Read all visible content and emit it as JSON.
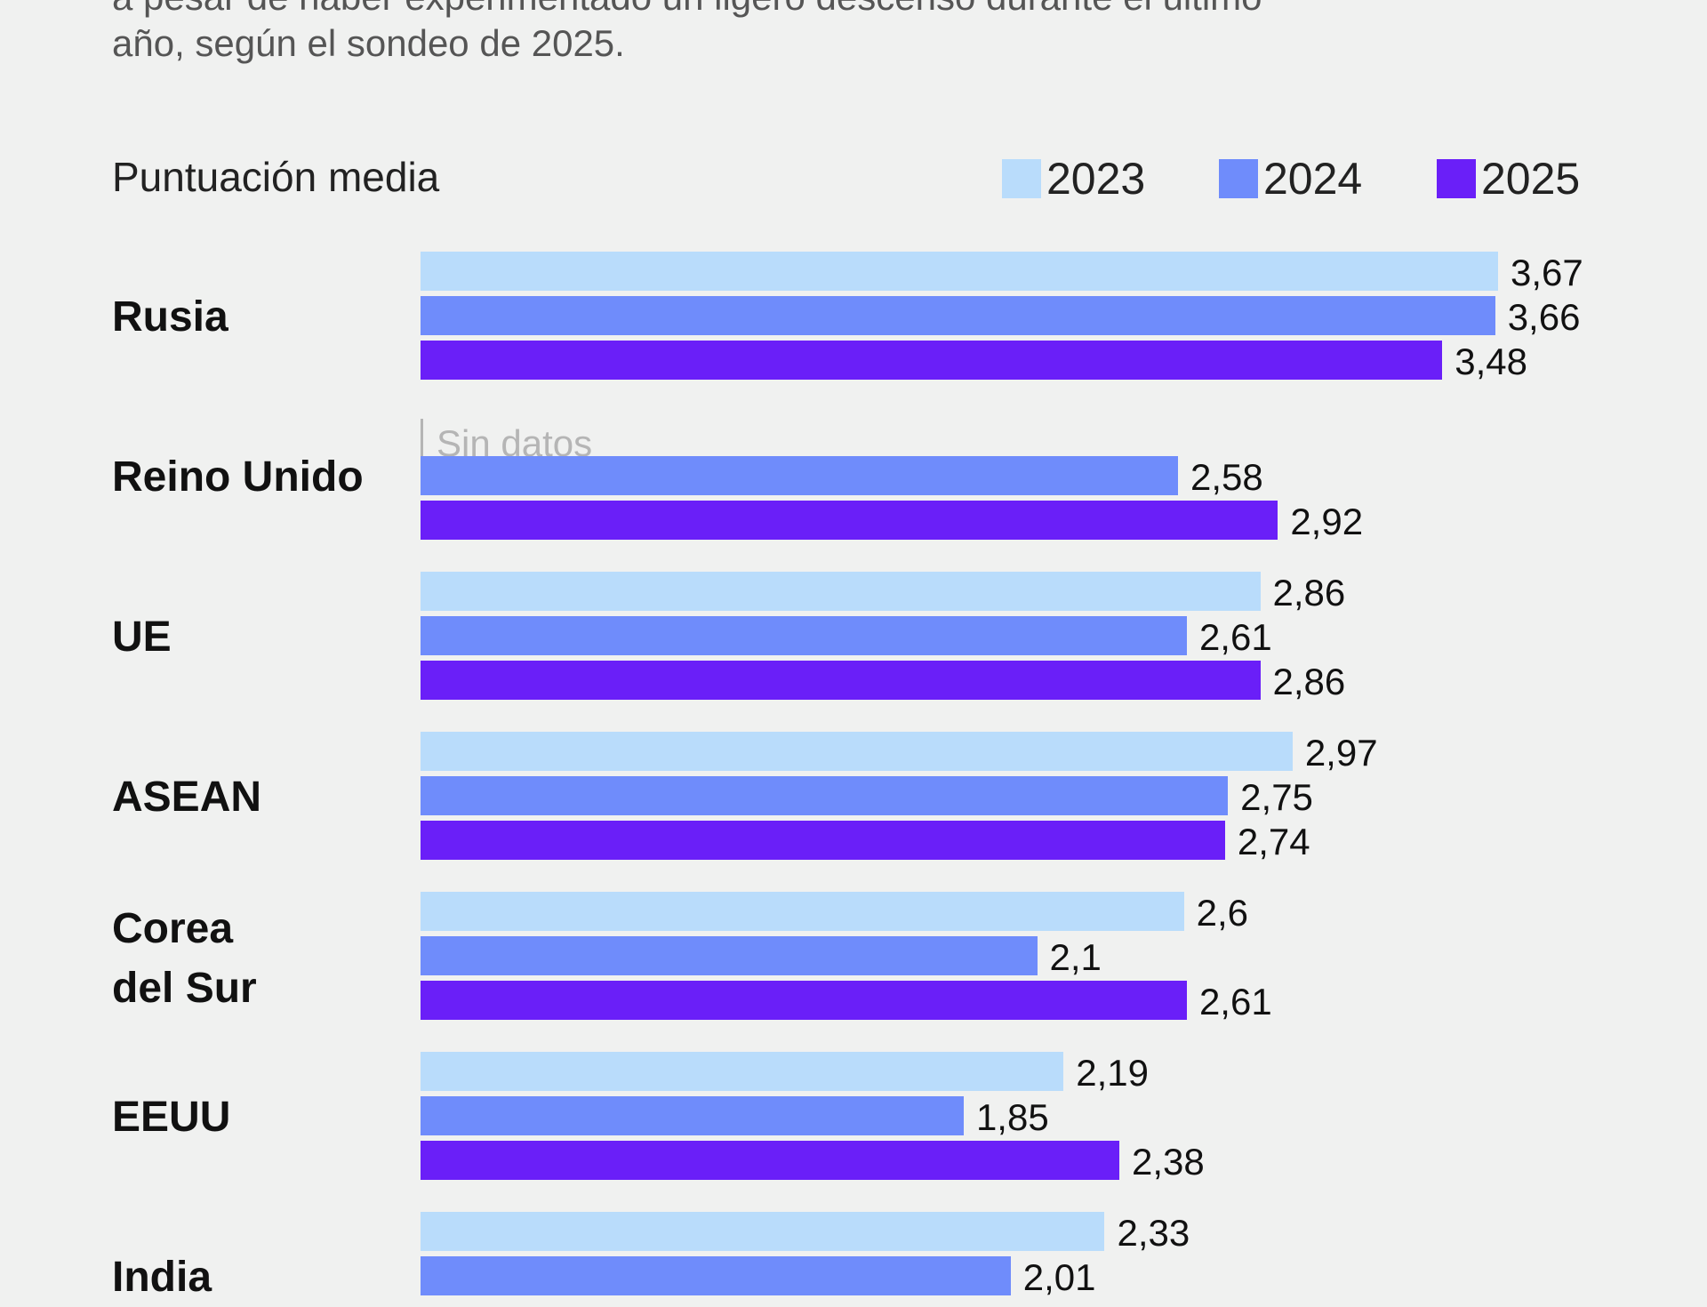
{
  "subtitle_lines": [
    "a pesar de haber experimentado un ligero descenso durante el último",
    "año, según el sondeo de 2025."
  ],
  "chart_data": {
    "type": "bar",
    "orientation": "horizontal",
    "ylabel": "Puntuación media",
    "legend_placement": "top-right",
    "no_data_label": "Sin datos",
    "categories": [
      "Rusia",
      "Reino Unido",
      "UE",
      "ASEAN",
      "Corea del Sur",
      "EEUU",
      "India"
    ],
    "series": [
      {
        "name": "2023",
        "color": "#b9dcfb",
        "values": [
          3.67,
          null,
          2.86,
          2.97,
          2.6,
          2.19,
          2.33
        ],
        "labels": [
          "3,67",
          null,
          "2,86",
          "2,97",
          "2,6",
          "2,19",
          "2,33"
        ]
      },
      {
        "name": "2024",
        "color": "#6f8cfb",
        "values": [
          3.66,
          2.58,
          2.61,
          2.75,
          2.1,
          1.85,
          2.01
        ],
        "labels": [
          "3,66",
          "2,58",
          "2,61",
          "2,75",
          "2,1",
          "1,85",
          "2,01"
        ]
      },
      {
        "name": "2025",
        "color": "#6a1ff8",
        "values": [
          3.48,
          2.92,
          2.86,
          2.74,
          2.61,
          2.38,
          null
        ],
        "labels": [
          "3,48",
          "2,92",
          "2,86",
          "2,74",
          "2,61",
          "2,38",
          null
        ]
      }
    ],
    "xlim": [
      0,
      3.67
    ]
  }
}
